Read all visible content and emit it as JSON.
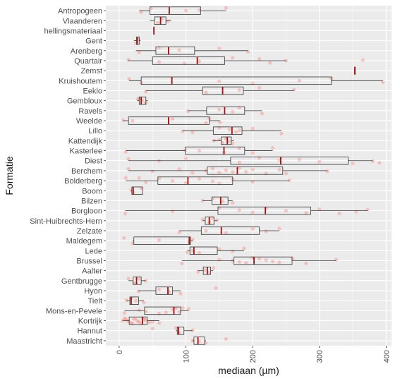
{
  "chart_data": {
    "type": "boxplot",
    "orientation": "horizontal",
    "xlabel": "mediaan (µm)",
    "ylabel": "Formatie",
    "xlim": [
      -20,
      408
    ],
    "xticks": [
      0,
      100,
      200,
      300,
      400
    ],
    "x_tick_labels": [
      "0",
      "100",
      "200",
      "300",
      "400"
    ],
    "grid": true,
    "background": "#ebebeb",
    "point_color": "#f8766d",
    "median_color": "#a01010",
    "categories": [
      "Antropogeen",
      "Vlaanderen",
      "hellingsmateriaal",
      "Gent",
      "Arenberg",
      "Quartair",
      "Zemst",
      "Kruishoutem",
      "Eeklo",
      "Gembloux",
      "Ravels",
      "Weelde",
      "Lillo",
      "Kattendijk",
      "Kasterlee",
      "Diest",
      "Berchem",
      "Bolderberg",
      "Boom",
      "Bilzen",
      "Borgloon",
      "Sint-Huibrechts-Hern",
      "Zelzate",
      "Maldegem",
      "Lede",
      "Brussel",
      "Aalter",
      "Gentbrugge",
      "Hyon",
      "Tielt",
      "Mons-en-Pevele",
      "Kortrijk",
      "Hannut",
      "Maastricht"
    ],
    "boxes": [
      {
        "label": "Antropogeen",
        "whisker_low": 30,
        "q1": 46,
        "median": 75,
        "q3": 122,
        "whisker_high": 160
      },
      {
        "label": "Vlaanderen",
        "whisker_low": 46,
        "q1": 53,
        "median": 62,
        "q3": 70,
        "whisker_high": 78
      },
      {
        "label": "hellingsmateriaal",
        "whisker_low": 52,
        "q1": 52,
        "median": 52,
        "q3": 52,
        "whisker_high": 52
      },
      {
        "label": "Gent",
        "whisker_low": 22,
        "q1": 26,
        "median": 27,
        "q3": 30,
        "whisker_high": 32
      },
      {
        "label": "Arenberg",
        "whisker_low": 25,
        "q1": 55,
        "median": 74,
        "q3": 113,
        "whisker_high": 193
      },
      {
        "label": "Quartair",
        "whisker_low": 13,
        "q1": 50,
        "median": 117,
        "q3": 158,
        "whisker_high": 250
      },
      {
        "label": "Zemst",
        "whisker_low": 353,
        "q1": 353,
        "median": 353,
        "q3": 353,
        "whisker_high": 353
      },
      {
        "label": "Kruishoutem",
        "whisker_low": 15,
        "q1": 33,
        "median": 79,
        "q3": 318,
        "whisker_high": 395
      },
      {
        "label": "Eeklo",
        "whisker_low": 40,
        "q1": 125,
        "median": 155,
        "q3": 186,
        "whisker_high": 262
      },
      {
        "label": "Gembloux",
        "whisker_low": 27,
        "q1": 30,
        "median": 33,
        "q3": 40,
        "whisker_high": 43
      },
      {
        "label": "Ravels",
        "whisker_low": 103,
        "q1": 131,
        "median": 158,
        "q3": 188,
        "whisker_high": 214
      },
      {
        "label": "Weelde",
        "whisker_low": 6,
        "q1": 14,
        "median": 74,
        "q3": 135,
        "whisker_high": 151
      },
      {
        "label": "Lillo",
        "whisker_low": 95,
        "q1": 141,
        "median": 169,
        "q3": 184,
        "whisker_high": 243
      },
      {
        "label": "Kattendijk",
        "whisker_low": 140,
        "q1": 153,
        "median": 162,
        "q3": 168,
        "whisker_high": 172
      },
      {
        "label": "Kasterlee",
        "whisker_low": 10,
        "q1": 99,
        "median": 157,
        "q3": 188,
        "whisker_high": 230
      },
      {
        "label": "Diest",
        "whisker_low": 14,
        "q1": 167,
        "median": 242,
        "q3": 343,
        "whisker_high": 380
      },
      {
        "label": "Berchem",
        "whisker_low": 14,
        "q1": 132,
        "median": 177,
        "q3": 245,
        "whisker_high": 312
      },
      {
        "label": "Bolderberg",
        "whisker_low": 10,
        "q1": 58,
        "median": 103,
        "q3": 170,
        "whisker_high": 255
      },
      {
        "label": "Boom",
        "whisker_low": 18,
        "q1": 19,
        "median": 21,
        "q3": 35,
        "whisker_high": 35
      },
      {
        "label": "Bilzen",
        "whisker_low": 125,
        "q1": 139,
        "median": 152,
        "q3": 163,
        "whisker_high": 170
      },
      {
        "label": "Borgloon",
        "whisker_low": 9,
        "q1": 148,
        "median": 219,
        "q3": 287,
        "whisker_high": 372
      },
      {
        "label": "Sint-Huibrechts-Hern",
        "whisker_low": 125,
        "q1": 129,
        "median": 135,
        "q3": 142,
        "whisker_high": 147
      },
      {
        "label": "Zelzate",
        "whisker_low": 90,
        "q1": 123,
        "median": 153,
        "q3": 210,
        "whisker_high": 240
      },
      {
        "label": "Maldegem",
        "whisker_low": 20,
        "q1": 22,
        "median": 105,
        "q3": 107,
        "whisker_high": 110
      },
      {
        "label": "Lede",
        "whisker_low": 102,
        "q1": 106,
        "median": 112,
        "q3": 147,
        "whisker_high": 187
      },
      {
        "label": "Brussel",
        "whisker_low": 94,
        "q1": 172,
        "median": 202,
        "q3": 259,
        "whisker_high": 325
      },
      {
        "label": "Aalter",
        "whisker_low": 118,
        "q1": 126,
        "median": 132,
        "q3": 137,
        "whisker_high": 141
      },
      {
        "label": "Gentbrugge",
        "whisker_low": 14,
        "q1": 21,
        "median": 26,
        "q3": 33,
        "whisker_high": 40
      },
      {
        "label": "Hyon",
        "whisker_low": 29,
        "q1": 55,
        "median": 73,
        "q3": 80,
        "whisker_high": 92
      },
      {
        "label": "Tielt",
        "whisker_low": 11,
        "q1": 16,
        "median": 18,
        "q3": 29,
        "whisker_high": 37
      },
      {
        "label": "Mons-en-Pevele",
        "whisker_low": 8,
        "q1": 38,
        "median": 82,
        "q3": 92,
        "whisker_high": 104
      },
      {
        "label": "Kortrijk",
        "whisker_low": 5,
        "q1": 15,
        "median": 35,
        "q3": 42,
        "whisker_high": 60
      },
      {
        "label": "Hannut",
        "whisker_low": 85,
        "q1": 87,
        "median": 89,
        "q3": 97,
        "whisker_high": 110
      },
      {
        "label": "Maastricht",
        "whisker_low": 110,
        "q1": 112,
        "median": 118,
        "q3": 128,
        "whisker_high": 130
      }
    ],
    "jitter_points": [
      [
        0,
        160
      ],
      [
        0,
        120
      ],
      [
        0,
        33
      ],
      [
        0,
        48
      ],
      [
        0,
        100
      ],
      [
        1,
        58
      ],
      [
        1,
        64
      ],
      [
        1,
        73
      ],
      [
        3,
        25
      ],
      [
        3,
        29
      ],
      [
        4,
        193
      ],
      [
        4,
        60
      ],
      [
        4,
        90
      ],
      [
        4,
        30
      ],
      [
        4,
        150
      ],
      [
        5,
        250
      ],
      [
        5,
        226
      ],
      [
        5,
        210
      ],
      [
        5,
        120
      ],
      [
        5,
        98
      ],
      [
        5,
        14
      ],
      [
        5,
        60
      ],
      [
        5,
        170
      ],
      [
        5,
        365
      ],
      [
        7,
        395
      ],
      [
        7,
        318
      ],
      [
        7,
        270
      ],
      [
        7,
        33
      ],
      [
        7,
        15
      ],
      [
        7,
        150
      ],
      [
        7,
        200
      ],
      [
        8,
        262
      ],
      [
        8,
        40
      ],
      [
        8,
        210
      ],
      [
        8,
        180
      ],
      [
        8,
        130
      ],
      [
        9,
        30
      ],
      [
        9,
        35
      ],
      [
        9,
        40
      ],
      [
        9,
        28
      ],
      [
        10,
        103
      ],
      [
        10,
        214
      ],
      [
        10,
        150
      ],
      [
        10,
        170
      ],
      [
        10,
        180
      ],
      [
        11,
        6
      ],
      [
        11,
        151
      ],
      [
        11,
        135
      ],
      [
        11,
        20
      ],
      [
        11,
        130
      ],
      [
        11,
        80
      ],
      [
        12,
        95
      ],
      [
        12,
        243
      ],
      [
        12,
        165
      ],
      [
        12,
        175
      ],
      [
        12,
        150
      ],
      [
        12,
        180
      ],
      [
        12,
        110
      ],
      [
        12,
        200
      ],
      [
        13,
        142
      ],
      [
        13,
        155
      ],
      [
        13,
        160
      ],
      [
        13,
        165
      ],
      [
        13,
        170
      ],
      [
        13,
        150
      ],
      [
        14,
        10
      ],
      [
        14,
        230
      ],
      [
        14,
        99
      ],
      [
        14,
        157
      ],
      [
        14,
        180
      ],
      [
        14,
        120
      ],
      [
        14,
        200
      ],
      [
        15,
        14
      ],
      [
        15,
        380
      ],
      [
        15,
        350
      ],
      [
        15,
        270
      ],
      [
        15,
        300
      ],
      [
        15,
        210
      ],
      [
        15,
        240
      ],
      [
        15,
        180
      ],
      [
        15,
        100
      ],
      [
        15,
        60
      ],
      [
        15,
        390
      ],
      [
        16,
        14
      ],
      [
        16,
        312
      ],
      [
        16,
        250
      ],
      [
        16,
        200
      ],
      [
        16,
        190
      ],
      [
        16,
        180
      ],
      [
        16,
        160
      ],
      [
        16,
        150
      ],
      [
        16,
        140
      ],
      [
        16,
        130
      ],
      [
        16,
        110
      ],
      [
        16,
        90
      ],
      [
        16,
        50
      ],
      [
        16,
        220
      ],
      [
        16,
        240
      ],
      [
        16,
        170
      ],
      [
        17,
        10
      ],
      [
        17,
        255
      ],
      [
        17,
        40
      ],
      [
        17,
        60
      ],
      [
        17,
        80
      ],
      [
        17,
        100
      ],
      [
        17,
        120
      ],
      [
        17,
        140
      ],
      [
        17,
        150
      ],
      [
        17,
        170
      ],
      [
        17,
        200
      ],
      [
        17,
        30
      ],
      [
        18,
        18
      ],
      [
        18,
        21
      ],
      [
        18,
        33
      ],
      [
        19,
        125
      ],
      [
        19,
        170
      ],
      [
        19,
        140
      ],
      [
        19,
        155
      ],
      [
        20,
        9
      ],
      [
        20,
        372
      ],
      [
        20,
        355
      ],
      [
        20,
        150
      ],
      [
        20,
        180
      ],
      [
        20,
        200
      ],
      [
        20,
        220
      ],
      [
        20,
        250
      ],
      [
        20,
        280
      ],
      [
        20,
        300
      ],
      [
        20,
        80
      ],
      [
        20,
        330
      ],
      [
        21,
        125
      ],
      [
        21,
        135
      ],
      [
        21,
        140
      ],
      [
        21,
        147
      ],
      [
        22,
        90
      ],
      [
        22,
        240
      ],
      [
        22,
        130
      ],
      [
        22,
        160
      ],
      [
        22,
        200
      ],
      [
        22,
        220
      ],
      [
        23,
        20
      ],
      [
        23,
        110
      ],
      [
        23,
        105
      ],
      [
        23,
        7
      ],
      [
        23,
        60
      ],
      [
        24,
        102
      ],
      [
        24,
        187
      ],
      [
        24,
        110
      ],
      [
        24,
        120
      ],
      [
        24,
        150
      ],
      [
        24,
        170
      ],
      [
        25,
        94
      ],
      [
        25,
        325
      ],
      [
        25,
        180
      ],
      [
        25,
        200
      ],
      [
        25,
        220
      ],
      [
        25,
        240
      ],
      [
        25,
        260
      ],
      [
        25,
        170
      ],
      [
        25,
        190
      ],
      [
        25,
        210
      ],
      [
        25,
        230
      ],
      [
        25,
        280
      ],
      [
        25,
        150
      ],
      [
        26,
        118
      ],
      [
        26,
        141
      ],
      [
        26,
        128
      ],
      [
        26,
        134
      ],
      [
        27,
        14
      ],
      [
        27,
        40
      ],
      [
        27,
        22
      ],
      [
        27,
        30
      ],
      [
        28,
        29
      ],
      [
        28,
        92
      ],
      [
        28,
        60
      ],
      [
        28,
        75
      ],
      [
        28,
        145
      ],
      [
        29,
        11
      ],
      [
        29,
        37
      ],
      [
        29,
        18
      ],
      [
        29,
        25
      ],
      [
        30,
        8
      ],
      [
        30,
        104
      ],
      [
        30,
        40
      ],
      [
        30,
        60
      ],
      [
        30,
        80
      ],
      [
        30,
        90
      ],
      [
        30,
        95
      ],
      [
        30,
        30
      ],
      [
        30,
        70
      ],
      [
        30,
        85
      ],
      [
        31,
        5
      ],
      [
        31,
        60
      ],
      [
        31,
        10
      ],
      [
        31,
        15
      ],
      [
        31,
        20
      ],
      [
        31,
        25
      ],
      [
        31,
        30
      ],
      [
        31,
        35
      ],
      [
        31,
        40
      ],
      [
        31,
        45
      ],
      [
        31,
        8
      ],
      [
        31,
        12
      ],
      [
        31,
        18
      ],
      [
        31,
        22
      ],
      [
        31,
        28
      ],
      [
        31,
        33
      ],
      [
        31,
        38
      ],
      [
        31,
        50
      ],
      [
        32,
        85
      ],
      [
        32,
        110
      ],
      [
        32,
        90
      ],
      [
        32,
        50
      ],
      [
        33,
        110
      ],
      [
        33,
        130
      ],
      [
        33,
        160
      ],
      [
        33,
        120
      ]
    ]
  }
}
